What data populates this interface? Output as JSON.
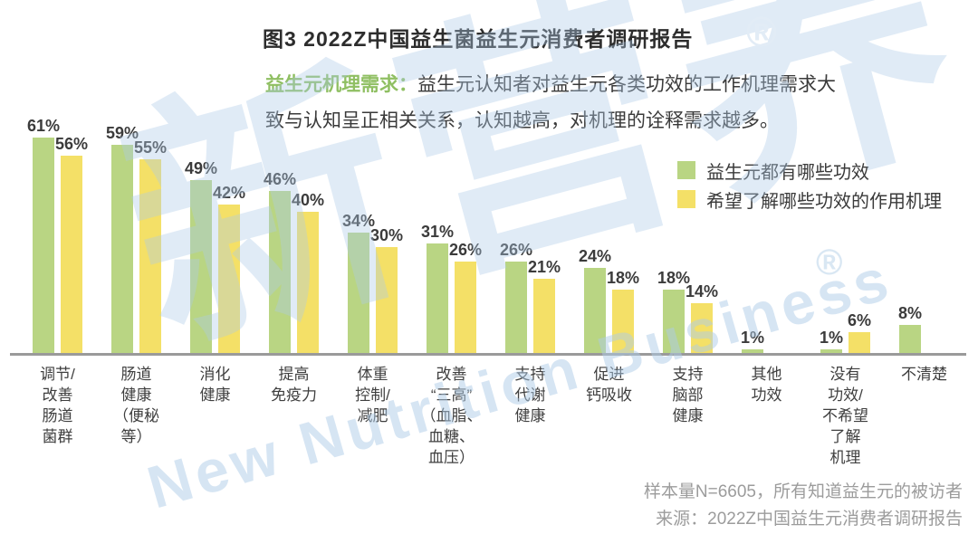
{
  "title": "图3 2022Z中国益生菌益生元消费者调研报告",
  "registered_mark": "®",
  "subtitle": {
    "label": "益生元机理需求：",
    "line1": "益生元认知者对益生元各类功效的工作机理需求大",
    "line2": "致与认知呈正相关关系，认知越高，对机理的诠释需求越多。"
  },
  "legend": [
    {
      "label": "益生元都有哪些功效",
      "color": "#b9d583"
    },
    {
      "label": "希望了解哪些功效的作用机理",
      "color": "#f4e067"
    }
  ],
  "chart_data": {
    "type": "bar",
    "title": "图3 2022Z中国益生菌益生元消费者调研报告",
    "categories": [
      "调节/\n改善\n肠道\n菌群",
      "肠道\n健康\n（便秘\n等）",
      "消化\n健康",
      "提高\n免疫力",
      "体重\n控制/\n减肥",
      "改善\n“三高”\n（血脂、\n血糖、\n血压）",
      "支持\n代谢\n健康",
      "促进\n钙吸收",
      "支持\n脑部\n健康",
      "其他\n功效",
      "没有\n功效/\n不希望\n了解\n机理",
      "不清楚"
    ],
    "series": [
      {
        "name": "益生元都有哪些功效",
        "color": "#b9d583",
        "values": [
          61,
          59,
          49,
          46,
          34,
          31,
          26,
          24,
          18,
          1,
          1,
          8
        ]
      },
      {
        "name": "希望了解哪些功效的作用机理",
        "color": "#f4e067",
        "values": [
          56,
          55,
          42,
          40,
          30,
          26,
          21,
          18,
          14,
          null,
          6,
          null
        ]
      }
    ],
    "value_suffix": "%",
    "ylim": [
      0,
      65
    ],
    "grid": false,
    "legend_position": "top-right",
    "axis_color": "#9a9a9a"
  },
  "footer": {
    "sample": "样本量N=6605，所有知道益生元的被访者",
    "source": "来源：2022Z中国益生元消费者调研报告"
  },
  "watermark": {
    "zh": "新营养",
    "en": "New Nutrition Business"
  }
}
